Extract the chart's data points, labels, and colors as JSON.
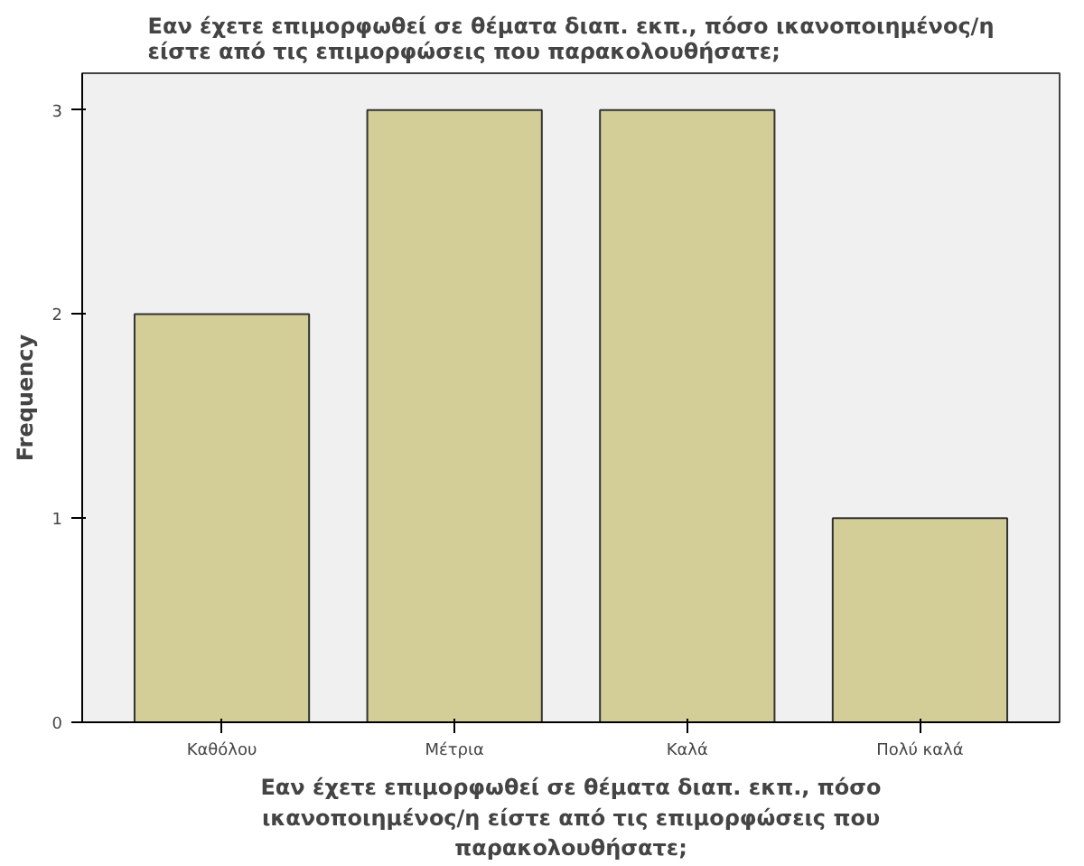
{
  "chart_data": {
    "type": "bar",
    "title": "Εαν έχετε επιμορφωθεί σε θέματα διαπ. εκπ., πόσο ικανοποιημένος/η\nείστε από τις επιμορφώσεις που παρακολουθήσατε;",
    "xlabel": "Εαν έχετε επιμορφωθεί σε θέματα διαπ. εκπ., πόσο\nικανοποιημένος/η είστε από τις επιμορφώσεις που\nπαρακολουθήσατε;",
    "ylabel": "Frequency",
    "categories": [
      "Καθόλου",
      "Μέτρια",
      "Καλά",
      "Πολύ καλά"
    ],
    "values": [
      2,
      3,
      3,
      1
    ],
    "color": "#d3ce97",
    "ylim": [
      0,
      3.18
    ],
    "yticks": [
      0,
      1,
      2,
      3
    ],
    "grid": false
  }
}
